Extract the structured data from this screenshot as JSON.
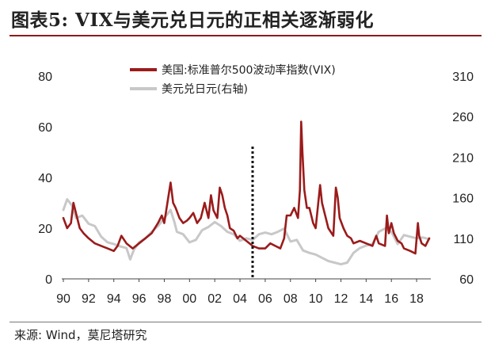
{
  "header": {
    "title": "图表5: VIX与美元兑日元的正相关逐渐弱化"
  },
  "footer": {
    "source": "来源: Wind，莫尼塔研究"
  },
  "colors": {
    "vix": "#9b1b1b",
    "usdjpy": "#c8c8c8",
    "marker": "#111111",
    "title_rule": "#8a1c1c"
  },
  "chart_data": {
    "type": "line",
    "title": "",
    "xlabel": "",
    "ylabel": "",
    "x_ticks": [
      "90",
      "92",
      "94",
      "96",
      "98",
      "00",
      "02",
      "04",
      "06",
      "08",
      "10",
      "12",
      "14",
      "16",
      "18"
    ],
    "xlim": [
      1990,
      2019
    ],
    "ylim_left": [
      0,
      80
    ],
    "ylim_right": [
      60,
      310
    ],
    "y_ticks_left": [
      "0",
      "20",
      "40",
      "60",
      "80"
    ],
    "y_ticks_right": [
      "60",
      "110",
      "160",
      "210",
      "260",
      "310"
    ],
    "legend_position": "top-center",
    "vertical_marker": {
      "x": 2005.0,
      "style": "dotted"
    },
    "grid": false,
    "series": [
      {
        "name": "美国:标准普尔500波动率指数(VIX)",
        "axis": "left",
        "x": [
          1990.0,
          1990.3,
          1990.6,
          1990.8,
          1991.0,
          1991.3,
          1991.6,
          1992.0,
          1992.5,
          1993.0,
          1993.5,
          1994.0,
          1994.3,
          1994.6,
          1995.0,
          1995.5,
          1996.0,
          1996.5,
          1997.0,
          1997.5,
          1997.8,
          1998.0,
          1998.5,
          1998.7,
          1998.9,
          1999.2,
          1999.5,
          1999.8,
          2000.0,
          2000.3,
          2000.6,
          2000.9,
          2001.2,
          2001.5,
          2001.7,
          2001.9,
          2002.2,
          2002.4,
          2002.6,
          2002.8,
          2003.0,
          2003.2,
          2003.5,
          2003.8,
          2004.0,
          2004.5,
          2005.0,
          2005.5,
          2006.0,
          2006.4,
          2006.8,
          2007.2,
          2007.5,
          2007.7,
          2008.0,
          2008.3,
          2008.6,
          2008.75,
          2008.85,
          2008.95,
          2009.1,
          2009.3,
          2009.5,
          2009.8,
          2010.0,
          2010.35,
          2010.5,
          2010.8,
          2011.0,
          2011.4,
          2011.6,
          2011.75,
          2011.9,
          2012.2,
          2012.5,
          2012.8,
          2013.0,
          2013.5,
          2014.0,
          2014.5,
          2014.8,
          2015.0,
          2015.5,
          2015.65,
          2015.8,
          2016.0,
          2016.2,
          2016.5,
          2016.8,
          2017.0,
          2017.5,
          2017.9,
          2018.1,
          2018.2,
          2018.4,
          2018.7,
          2018.9,
          2019.0
        ],
        "values": [
          24,
          20,
          22,
          30,
          26,
          20,
          18,
          16,
          14,
          13,
          12,
          11,
          13,
          17,
          14,
          12,
          14,
          16,
          18,
          22,
          25,
          22,
          38,
          30,
          28,
          24,
          22,
          23,
          24,
          26,
          22,
          24,
          30,
          24,
          33,
          27,
          24,
          36,
          33,
          28,
          25,
          20,
          19,
          16,
          17,
          15,
          13,
          12,
          12,
          14,
          13,
          12,
          16,
          25,
          25,
          28,
          24,
          35,
          62,
          50,
          35,
          28,
          28,
          22,
          20,
          37,
          30,
          24,
          20,
          17,
          36,
          32,
          24,
          20,
          17,
          16,
          14,
          15,
          14,
          13,
          17,
          14,
          13,
          25,
          18,
          22,
          18,
          15,
          14,
          12,
          11,
          10,
          22,
          17,
          14,
          13,
          15,
          16
        ]
      },
      {
        "name": "美元兑日元(右轴)",
        "axis": "right",
        "x": [
          1990.0,
          1990.3,
          1990.7,
          1991.0,
          1991.5,
          1992.0,
          1992.5,
          1993.0,
          1993.5,
          1994.0,
          1994.5,
          1995.0,
          1995.3,
          1995.6,
          1996.0,
          1996.5,
          1997.0,
          1997.5,
          1998.0,
          1998.5,
          1998.8,
          1999.0,
          1999.5,
          2000.0,
          2000.5,
          2001.0,
          2001.5,
          2002.0,
          2002.5,
          2003.0,
          2003.5,
          2004.0,
          2004.5,
          2005.0,
          2005.5,
          2006.0,
          2006.5,
          2007.0,
          2007.5,
          2008.0,
          2008.5,
          2009.0,
          2009.5,
          2010.0,
          2010.5,
          2011.0,
          2011.5,
          2012.0,
          2012.5,
          2013.0,
          2013.5,
          2014.0,
          2014.5,
          2015.0,
          2015.5,
          2016.0,
          2016.5,
          2017.0,
          2017.5,
          2018.0,
          2018.5,
          2019.0
        ],
        "values": [
          145,
          158,
          150,
          135,
          138,
          128,
          125,
          112,
          105,
          103,
          100,
          98,
          84,
          96,
          105,
          110,
          118,
          125,
          135,
          145,
          130,
          118,
          115,
          105,
          108,
          120,
          124,
          130,
          125,
          118,
          115,
          107,
          110,
          108,
          115,
          117,
          115,
          118,
          122,
          106,
          108,
          95,
          92,
          90,
          86,
          82,
          80,
          78,
          80,
          92,
          98,
          101,
          103,
          118,
          122,
          118,
          103,
          114,
          112,
          110,
          111,
          109
        ]
      }
    ]
  }
}
